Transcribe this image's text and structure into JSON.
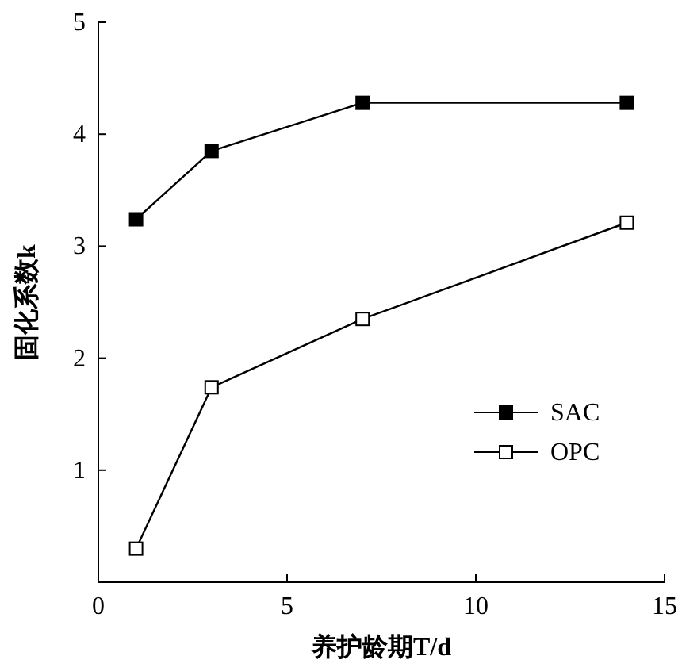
{
  "chart_data": {
    "type": "line",
    "xlabel": "养护龄期T/d",
    "ylabel": "固化系数k",
    "x": [
      1,
      3,
      7,
      14
    ],
    "series": [
      {
        "name": "SAC",
        "color": "#000000",
        "values": [
          3.24,
          3.85,
          4.28,
          4.28
        ]
      },
      {
        "name": "OPC",
        "color": "#000000",
        "values": [
          0.3,
          1.74,
          2.35,
          3.21
        ],
        "colors": [
          "#ffffff",
          "#ffffff",
          "#ffffff",
          "#ffffff"
        ]
      }
    ],
    "xlim": [
      0,
      15
    ],
    "xticks": [
      0,
      5,
      10,
      15
    ],
    "ylim": [
      0,
      5
    ],
    "yticks": [
      1,
      2,
      3,
      4,
      5
    ],
    "grid": false,
    "legend": "bottom right",
    "marker": "square",
    "line_style": "solid"
  }
}
